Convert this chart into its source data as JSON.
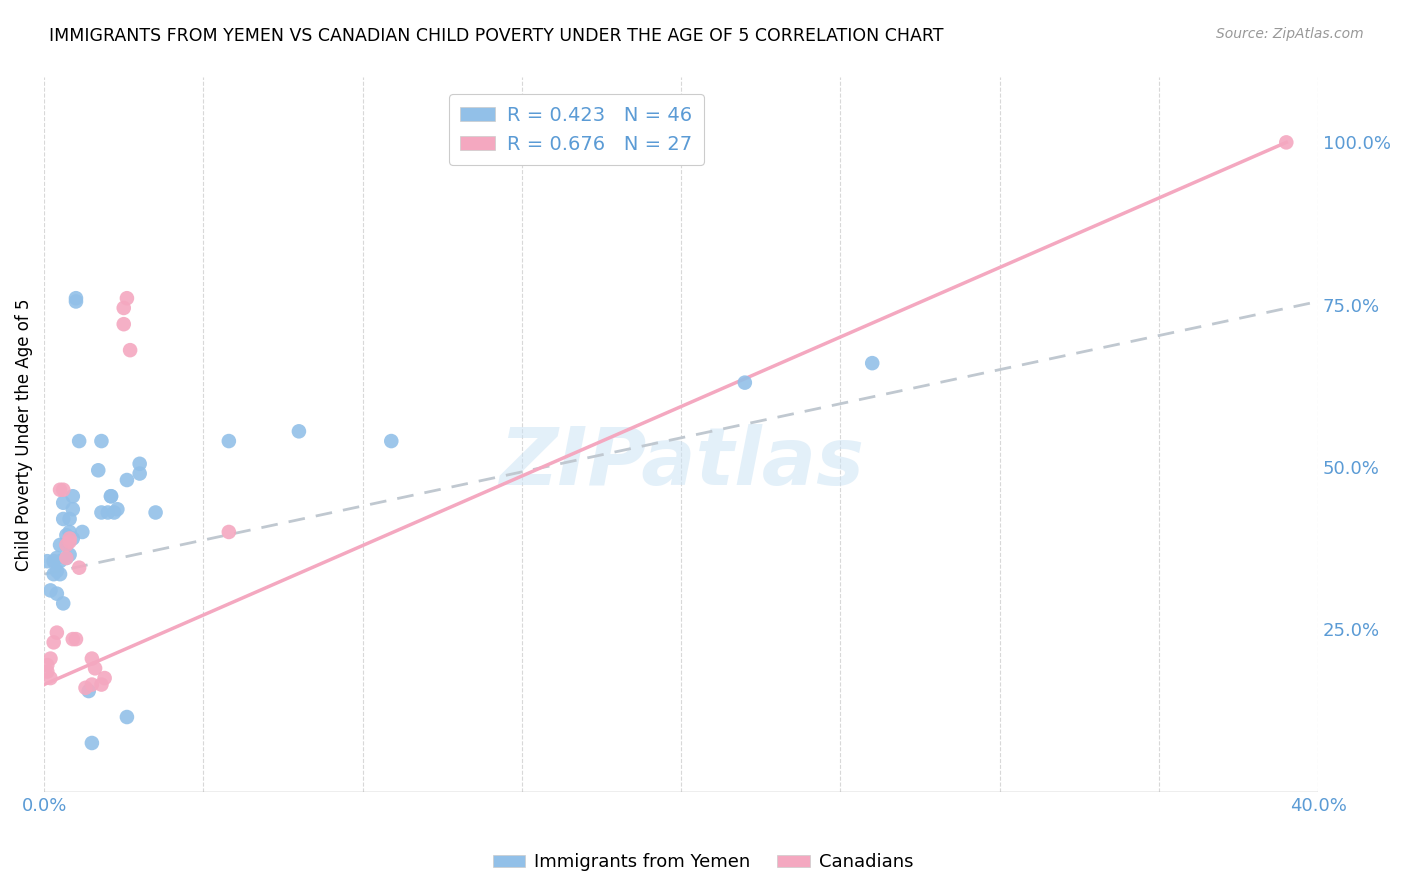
{
  "title": "IMMIGRANTS FROM YEMEN VS CANADIAN CHILD POVERTY UNDER THE AGE OF 5 CORRELATION CHART",
  "source": "Source: ZipAtlas.com",
  "ylabel": "Child Poverty Under the Age of 5",
  "ytick_labels": [
    "25.0%",
    "50.0%",
    "75.0%",
    "100.0%"
  ],
  "ytick_values": [
    0.25,
    0.5,
    0.75,
    1.0
  ],
  "xlim": [
    0.0,
    0.4
  ],
  "ylim": [
    0.0,
    1.1
  ],
  "blue_color": "#92c0e8",
  "pink_color": "#f4a8c0",
  "blue_line_color": "#b0c8e0",
  "pink_line_color": "#f4a8c0",
  "watermark": "ZIPatlas",
  "blue_scatter": [
    [
      0.001,
      0.355
    ],
    [
      0.002,
      0.31
    ],
    [
      0.003,
      0.335
    ],
    [
      0.003,
      0.355
    ],
    [
      0.004,
      0.34
    ],
    [
      0.004,
      0.36
    ],
    [
      0.004,
      0.305
    ],
    [
      0.005,
      0.355
    ],
    [
      0.005,
      0.38
    ],
    [
      0.005,
      0.335
    ],
    [
      0.006,
      0.445
    ],
    [
      0.006,
      0.42
    ],
    [
      0.006,
      0.29
    ],
    [
      0.007,
      0.36
    ],
    [
      0.007,
      0.38
    ],
    [
      0.007,
      0.395
    ],
    [
      0.008,
      0.365
    ],
    [
      0.008,
      0.4
    ],
    [
      0.008,
      0.42
    ],
    [
      0.009,
      0.39
    ],
    [
      0.009,
      0.435
    ],
    [
      0.009,
      0.455
    ],
    [
      0.01,
      0.76
    ],
    [
      0.01,
      0.755
    ],
    [
      0.011,
      0.54
    ],
    [
      0.012,
      0.4
    ],
    [
      0.014,
      0.155
    ],
    [
      0.015,
      0.075
    ],
    [
      0.017,
      0.495
    ],
    [
      0.018,
      0.54
    ],
    [
      0.018,
      0.43
    ],
    [
      0.02,
      0.43
    ],
    [
      0.021,
      0.455
    ],
    [
      0.021,
      0.455
    ],
    [
      0.022,
      0.43
    ],
    [
      0.023,
      0.435
    ],
    [
      0.026,
      0.48
    ],
    [
      0.026,
      0.115
    ],
    [
      0.03,
      0.505
    ],
    [
      0.03,
      0.49
    ],
    [
      0.035,
      0.43
    ],
    [
      0.058,
      0.54
    ],
    [
      0.08,
      0.555
    ],
    [
      0.109,
      0.54
    ],
    [
      0.22,
      0.63
    ],
    [
      0.26,
      0.66
    ]
  ],
  "pink_scatter": [
    [
      0.001,
      0.185
    ],
    [
      0.001,
      0.195
    ],
    [
      0.002,
      0.175
    ],
    [
      0.002,
      0.205
    ],
    [
      0.003,
      0.23
    ],
    [
      0.004,
      0.245
    ],
    [
      0.005,
      0.465
    ],
    [
      0.006,
      0.465
    ],
    [
      0.007,
      0.38
    ],
    [
      0.007,
      0.36
    ],
    [
      0.008,
      0.385
    ],
    [
      0.008,
      0.39
    ],
    [
      0.009,
      0.235
    ],
    [
      0.01,
      0.235
    ],
    [
      0.011,
      0.345
    ],
    [
      0.013,
      0.16
    ],
    [
      0.015,
      0.165
    ],
    [
      0.015,
      0.205
    ],
    [
      0.016,
      0.19
    ],
    [
      0.018,
      0.165
    ],
    [
      0.019,
      0.175
    ],
    [
      0.025,
      0.72
    ],
    [
      0.025,
      0.745
    ],
    [
      0.026,
      0.76
    ],
    [
      0.027,
      0.68
    ],
    [
      0.058,
      0.4
    ],
    [
      0.39,
      1.0
    ]
  ],
  "blue_line_x0": 0.0,
  "blue_line_x1": 0.4,
  "blue_line_y0": 0.335,
  "blue_line_y1": 0.755,
  "pink_line_x0": 0.0,
  "pink_line_x1": 0.39,
  "pink_line_y0": 0.165,
  "pink_line_y1": 1.0,
  "grid_color": "#d8d8d8",
  "tick_label_color": "#5b9bd5",
  "legend_r1": "R = 0.423",
  "legend_n1": "N = 46",
  "legend_r2": "R = 0.676",
  "legend_n2": "N = 27",
  "legend_label1": "Immigrants from Yemen",
  "legend_label2": "Canadians"
}
